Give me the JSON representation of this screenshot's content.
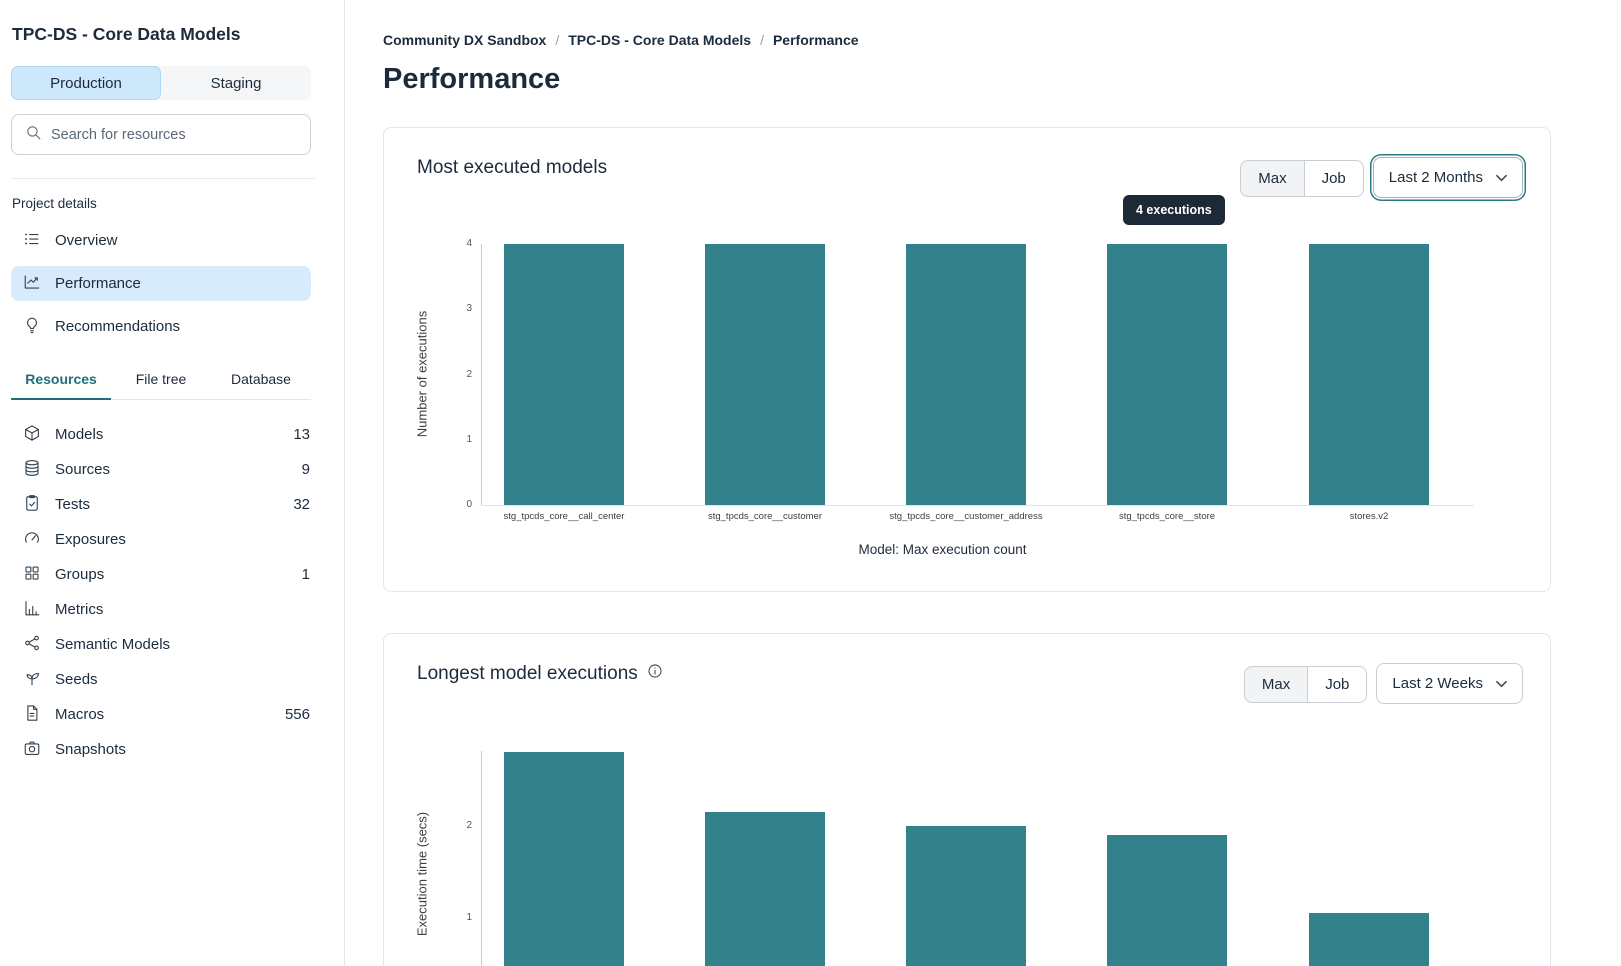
{
  "sidebar": {
    "title": "TPC-DS - Core Data Models",
    "env_tabs": [
      {
        "label": "Production",
        "active": true
      },
      {
        "label": "Staging",
        "active": false
      }
    ],
    "search": {
      "placeholder": "Search for resources"
    },
    "project_details_label": "Project details",
    "project_nav": [
      {
        "label": "Overview",
        "icon": "list-icon",
        "active": false
      },
      {
        "label": "Performance",
        "icon": "chart-line-icon",
        "active": true
      },
      {
        "label": "Recommendations",
        "icon": "lightbulb-icon",
        "active": false
      }
    ],
    "resource_tabs": [
      {
        "label": "Resources",
        "active": true
      },
      {
        "label": "File tree",
        "active": false
      },
      {
        "label": "Database",
        "active": false
      }
    ],
    "resources": [
      {
        "label": "Models",
        "count": "13",
        "icon": "cube-icon"
      },
      {
        "label": "Sources",
        "count": "9",
        "icon": "database-icon"
      },
      {
        "label": "Tests",
        "count": "32",
        "icon": "clipboard-check-icon"
      },
      {
        "label": "Exposures",
        "count": "",
        "icon": "gauge-icon"
      },
      {
        "label": "Groups",
        "count": "1",
        "icon": "grid-icon"
      },
      {
        "label": "Metrics",
        "count": "",
        "icon": "bar-chart-icon"
      },
      {
        "label": "Semantic Models",
        "count": "",
        "icon": "network-icon"
      },
      {
        "label": "Seeds",
        "count": "",
        "icon": "seedling-icon"
      },
      {
        "label": "Macros",
        "count": "556",
        "icon": "document-icon"
      },
      {
        "label": "Snapshots",
        "count": "",
        "icon": "camera-icon"
      }
    ]
  },
  "main": {
    "breadcrumb": {
      "items": [
        "Community DX Sandbox",
        "TPC-DS - Core Data Models",
        "Performance"
      ],
      "separator": "/"
    },
    "page_title": "Performance",
    "cards": [
      {
        "title": "Most executed models",
        "toggle": {
          "options": [
            "Max",
            "Job"
          ],
          "selected": "Max"
        },
        "range_selector": {
          "value": "Last 2 Months",
          "focused": true
        },
        "tooltip": "4 executions"
      },
      {
        "title": "Longest model executions",
        "info_icon": "info-icon",
        "toggle": {
          "options": [
            "Max",
            "Job"
          ],
          "selected": "Max"
        },
        "range_selector": {
          "value": "Last 2 Weeks",
          "focused": false
        }
      }
    ]
  },
  "colors": {
    "bar_teal": "#33818A",
    "active_nav_bg": "#D7EBFC",
    "active_env_tab_bg": "#CDE7FB",
    "resources_tab_teal": "#1E6F7D",
    "tooltip_bg": "#1C2936",
    "text_navy": "#1C2B3C"
  },
  "chart_data": [
    {
      "type": "bar",
      "title": "Most executed models",
      "categories": [
        "stg_tpcds_core__call_center",
        "stg_tpcds_core__customer",
        "stg_tpcds_core__customer_address",
        "stg_tpcds_core__store",
        "stores.v2"
      ],
      "values": [
        4,
        4,
        4,
        4,
        4
      ],
      "xlabel": "Model: Max execution count",
      "ylabel": "Number of executions",
      "ylim": [
        0,
        4
      ],
      "yticks": [
        0,
        1,
        2,
        3,
        4
      ],
      "grid": false,
      "legend": false,
      "bar_color": "#33818A",
      "tooltip": {
        "text": "4 executions",
        "target_category": "stg_tpcds_core__store"
      }
    },
    {
      "type": "bar",
      "title": "Longest model executions",
      "categories": [
        "",
        "",
        "",
        "",
        ""
      ],
      "values": [
        2.8,
        2.15,
        2.0,
        1.9,
        1.05
      ],
      "xlabel": "",
      "ylabel": "Execution time (secs)",
      "yticks": [
        1,
        2
      ],
      "grid": false,
      "legend": false,
      "bar_color": "#33818A"
    }
  ]
}
